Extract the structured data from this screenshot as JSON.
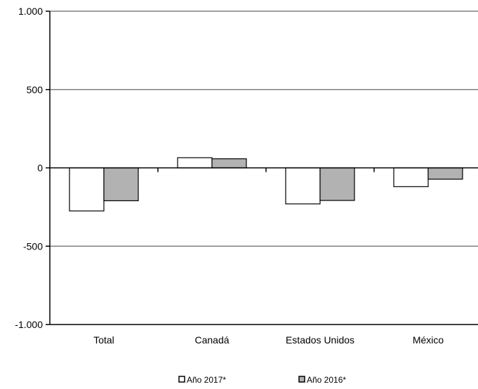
{
  "chart_data": {
    "type": "bar",
    "categories": [
      "Total",
      "Canadá",
      "Estados Unidos",
      "México"
    ],
    "series": [
      {
        "name": "Año 2017*",
        "values": [
          -275,
          65,
          -230,
          -120
        ],
        "color": "#ffffff"
      },
      {
        "name": "Año 2016*",
        "values": [
          -210,
          58,
          -208,
          -72
        ],
        "color": "#b2b2b2"
      }
    ],
    "ylim": [
      -1000,
      1000
    ],
    "yticks": [
      1000,
      500,
      0,
      -500,
      -1000
    ],
    "ytick_labels": [
      "1.000",
      "500",
      "0",
      "-500",
      "-1.000"
    ],
    "grid": true,
    "legend_position": "bottom-center",
    "colors": {
      "gridline": "#808080",
      "axis": "#000000",
      "bar_stroke": "#000000"
    }
  }
}
